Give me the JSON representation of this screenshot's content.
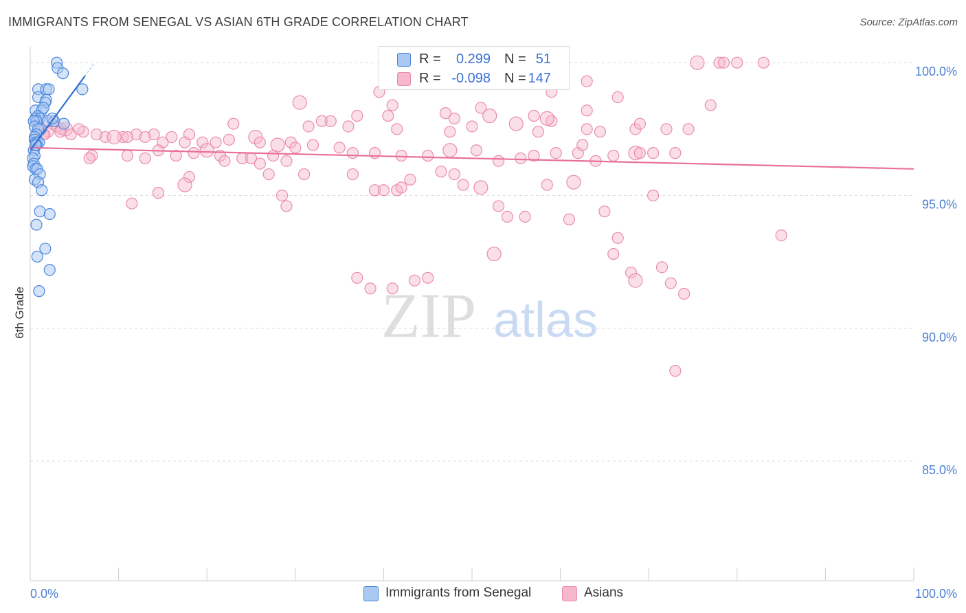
{
  "title": "IMMIGRANTS FROM SENEGAL VS ASIAN 6TH GRADE CORRELATION CHART",
  "source": "Source: ZipAtlas.com",
  "watermark": {
    "zip": "ZIP",
    "atlas": "atlas"
  },
  "colors": {
    "blue_fill": "#a9c8f2",
    "blue_stroke": "#4a86dc",
    "blue_line": "#2f6fd1",
    "pink_fill": "#f7b8cc",
    "pink_stroke": "#ea8cab",
    "pink_line": "#e8709a",
    "axis_text": "#4a7fd4",
    "grid": "#dcdcdc"
  },
  "legend": {
    "rows": [
      {
        "series": "Immigrants from Senegal",
        "r_label": "R =",
        "r_value": "0.299",
        "n_label": "N =",
        "n_value": "51",
        "color": "#a9c8f2",
        "border": "#4a86dc"
      },
      {
        "series": "Asians",
        "r_label": "R =",
        "r_value": "-0.098",
        "n_label": "N =",
        "n_value": "147",
        "color": "#f7b8cc",
        "border": "#ea8cab"
      }
    ]
  },
  "bottom_legend": [
    {
      "label": "Immigrants from Senegal",
      "color": "#a9c8f2",
      "border": "#4a86dc"
    },
    {
      "label": "Asians",
      "color": "#f7b8cc",
      "border": "#ea8cab"
    }
  ],
  "chart_data": {
    "type": "scatter",
    "title": "IMMIGRANTS FROM SENEGAL VS ASIAN 6TH GRADE CORRELATION CHART",
    "xlabel": "",
    "ylabel": "6th Grade",
    "xlim": [
      0,
      100
    ],
    "ylim": [
      80.5,
      100.6
    ],
    "x_tick_labels": [
      "0.0%",
      "100.0%"
    ],
    "y_ticks": [
      100,
      95,
      90,
      85
    ],
    "y_tick_labels": [
      "100.0%",
      "95.0%",
      "90.0%",
      "85.0%"
    ],
    "grid": true,
    "series": [
      {
        "name": "Immigrants from Senegal",
        "r": 0.299,
        "n": 51,
        "trend": {
          "x": [
            0.0,
            6.2
          ],
          "y": [
            96.7,
            99.5
          ]
        },
        "trend_dashed": {
          "x": [
            6.2,
            7.3
          ],
          "y": [
            99.5,
            100.0
          ]
        },
        "points": [
          [
            3.0,
            100.0
          ],
          [
            3.1,
            99.8
          ],
          [
            3.7,
            99.6
          ],
          [
            0.9,
            99.0
          ],
          [
            1.8,
            99.0
          ],
          [
            2.1,
            99.0
          ],
          [
            5.9,
            99.0
          ],
          [
            0.9,
            98.7
          ],
          [
            1.8,
            98.6
          ],
          [
            1.7,
            98.5
          ],
          [
            0.6,
            98.2
          ],
          [
            1.3,
            98.2
          ],
          [
            0.9,
            98.0
          ],
          [
            0.6,
            97.9
          ],
          [
            1.1,
            97.9
          ],
          [
            0.7,
            97.8
          ],
          [
            0.4,
            97.8
          ],
          [
            0.5,
            97.6
          ],
          [
            1.2,
            97.5
          ],
          [
            0.9,
            97.5
          ],
          [
            0.7,
            97.3
          ],
          [
            0.5,
            97.2
          ],
          [
            0.5,
            97.1
          ],
          [
            0.6,
            97.0
          ],
          [
            0.8,
            97.0
          ],
          [
            1.0,
            97.0
          ],
          [
            0.7,
            96.9
          ],
          [
            0.4,
            96.7
          ],
          [
            0.5,
            96.5
          ],
          [
            0.3,
            96.4
          ],
          [
            0.4,
            96.2
          ],
          [
            0.3,
            96.1
          ],
          [
            0.6,
            96.0
          ],
          [
            0.8,
            96.0
          ],
          [
            1.1,
            95.8
          ],
          [
            0.5,
            95.6
          ],
          [
            0.9,
            95.5
          ],
          [
            1.3,
            95.2
          ],
          [
            1.1,
            94.4
          ],
          [
            2.2,
            94.3
          ],
          [
            0.7,
            93.9
          ],
          [
            1.7,
            93.0
          ],
          [
            0.8,
            92.7
          ],
          [
            2.2,
            92.2
          ],
          [
            1.0,
            91.4
          ],
          [
            2.0,
            97.8
          ],
          [
            2.7,
            97.8
          ],
          [
            3.8,
            97.7
          ],
          [
            1.5,
            98.3
          ],
          [
            2.5,
            97.9
          ],
          [
            0.6,
            96.9
          ]
        ]
      },
      {
        "name": "Asians",
        "r": -0.098,
        "n": 147,
        "trend": {
          "x": [
            0,
            100
          ],
          "y": [
            96.8,
            96.0
          ]
        },
        "points": [
          [
            75.5,
            100.0
          ],
          [
            78.0,
            100.0
          ],
          [
            78.5,
            100.0
          ],
          [
            80.0,
            100.0
          ],
          [
            83.0,
            100.0
          ],
          [
            63.0,
            99.3
          ],
          [
            39.5,
            98.9
          ],
          [
            59.0,
            98.9
          ],
          [
            66.5,
            98.7
          ],
          [
            30.5,
            98.5
          ],
          [
            41.0,
            98.4
          ],
          [
            51.0,
            98.3
          ],
          [
            57.0,
            98.0
          ],
          [
            77.0,
            98.4
          ],
          [
            63.0,
            98.2
          ],
          [
            40.5,
            98.0
          ],
          [
            37.0,
            98.0
          ],
          [
            47.0,
            98.1
          ],
          [
            52.0,
            98.0
          ],
          [
            33.0,
            97.8
          ],
          [
            48.0,
            97.9
          ],
          [
            23.0,
            97.7
          ],
          [
            31.5,
            97.6
          ],
          [
            34.0,
            97.8
          ],
          [
            36.0,
            97.6
          ],
          [
            41.5,
            97.5
          ],
          [
            50.0,
            97.6
          ],
          [
            55.0,
            97.7
          ],
          [
            57.5,
            97.4
          ],
          [
            63.0,
            97.5
          ],
          [
            64.5,
            97.4
          ],
          [
            68.5,
            97.5
          ],
          [
            74.5,
            97.5
          ],
          [
            69.0,
            97.7
          ],
          [
            72.0,
            97.5
          ],
          [
            59.0,
            97.8
          ],
          [
            25.5,
            97.2
          ],
          [
            18.0,
            97.3
          ],
          [
            16.0,
            97.2
          ],
          [
            14.0,
            97.3
          ],
          [
            12.0,
            97.3
          ],
          [
            10.5,
            97.2
          ],
          [
            8.5,
            97.2
          ],
          [
            7.5,
            97.3
          ],
          [
            6.0,
            97.4
          ],
          [
            4.0,
            97.5
          ],
          [
            3.0,
            97.6
          ],
          [
            2.0,
            97.4
          ],
          [
            1.5,
            97.3
          ],
          [
            1.0,
            97.6
          ],
          [
            0.8,
            97.8
          ],
          [
            2.5,
            97.7
          ],
          [
            3.5,
            97.5
          ],
          [
            5.5,
            97.5
          ],
          [
            9.5,
            97.2
          ],
          [
            11.0,
            97.2
          ],
          [
            13.0,
            97.2
          ],
          [
            15.0,
            97.0
          ],
          [
            17.5,
            97.0
          ],
          [
            19.5,
            97.0
          ],
          [
            21.0,
            97.0
          ],
          [
            22.5,
            97.1
          ],
          [
            26.0,
            97.0
          ],
          [
            28.0,
            96.9
          ],
          [
            29.5,
            97.0
          ],
          [
            30.0,
            96.8
          ],
          [
            32.0,
            96.9
          ],
          [
            35.0,
            96.8
          ],
          [
            36.5,
            96.6
          ],
          [
            39.0,
            96.6
          ],
          [
            42.0,
            96.5
          ],
          [
            45.0,
            96.5
          ],
          [
            47.5,
            96.7
          ],
          [
            50.5,
            96.7
          ],
          [
            53.0,
            96.3
          ],
          [
            55.5,
            96.4
          ],
          [
            57.0,
            96.5
          ],
          [
            59.5,
            96.6
          ],
          [
            62.0,
            96.6
          ],
          [
            64.0,
            96.3
          ],
          [
            66.0,
            96.5
          ],
          [
            68.5,
            96.6
          ],
          [
            70.5,
            96.6
          ],
          [
            73.0,
            96.6
          ],
          [
            7.0,
            96.5
          ],
          [
            11.0,
            96.5
          ],
          [
            13.0,
            96.4
          ],
          [
            14.5,
            96.7
          ],
          [
            16.5,
            96.5
          ],
          [
            18.5,
            96.6
          ],
          [
            20.0,
            96.7
          ],
          [
            21.5,
            96.5
          ],
          [
            22.0,
            96.3
          ],
          [
            24.0,
            96.4
          ],
          [
            25.0,
            96.4
          ],
          [
            26.0,
            96.2
          ],
          [
            27.5,
            96.5
          ],
          [
            29.0,
            96.3
          ],
          [
            18.0,
            95.7
          ],
          [
            17.5,
            95.4
          ],
          [
            27.0,
            95.8
          ],
          [
            31.0,
            95.8
          ],
          [
            36.5,
            95.8
          ],
          [
            43.0,
            95.6
          ],
          [
            46.5,
            95.9
          ],
          [
            48.0,
            95.8
          ],
          [
            49.0,
            95.4
          ],
          [
            58.5,
            95.4
          ],
          [
            61.5,
            95.5
          ],
          [
            14.5,
            95.1
          ],
          [
            11.5,
            94.7
          ],
          [
            28.5,
            95.0
          ],
          [
            29.0,
            94.6
          ],
          [
            39.0,
            95.2
          ],
          [
            40.0,
            95.2
          ],
          [
            41.5,
            95.2
          ],
          [
            42.0,
            95.3
          ],
          [
            51.0,
            95.3
          ],
          [
            53.0,
            94.6
          ],
          [
            54.0,
            94.2
          ],
          [
            56.0,
            94.2
          ],
          [
            61.0,
            94.1
          ],
          [
            70.5,
            95.0
          ],
          [
            65.0,
            94.4
          ],
          [
            66.5,
            93.4
          ],
          [
            85.0,
            93.5
          ],
          [
            52.5,
            92.8
          ],
          [
            66.0,
            92.8
          ],
          [
            68.0,
            92.1
          ],
          [
            71.5,
            92.3
          ],
          [
            37.0,
            91.9
          ],
          [
            38.5,
            91.5
          ],
          [
            41.0,
            91.5
          ],
          [
            43.5,
            91.8
          ],
          [
            45.0,
            91.9
          ],
          [
            68.5,
            91.8
          ],
          [
            72.5,
            91.7
          ],
          [
            74.0,
            91.3
          ],
          [
            73.0,
            88.4
          ],
          [
            69.0,
            96.6
          ],
          [
            1.6,
            97.3
          ],
          [
            4.6,
            97.3
          ],
          [
            6.7,
            96.4
          ],
          [
            3.4,
            97.4
          ],
          [
            58.5,
            97.9
          ],
          [
            47.5,
            97.4
          ],
          [
            62.5,
            96.9
          ]
        ]
      }
    ]
  }
}
